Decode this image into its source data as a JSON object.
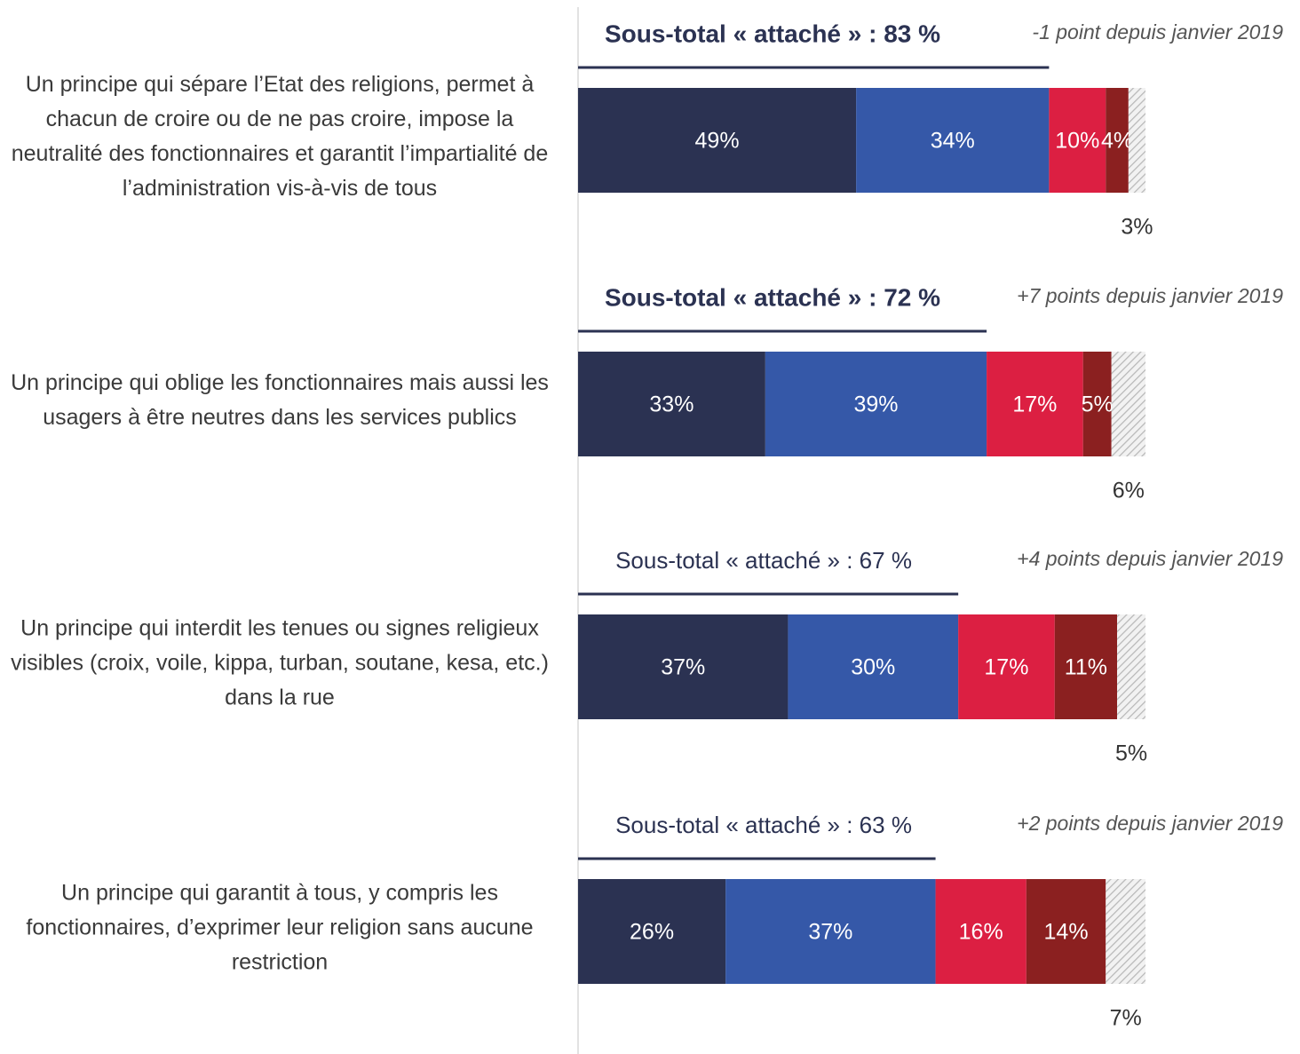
{
  "chart_data": {
    "type": "stacked-bar-horizontal",
    "categories": [
      "Un principe qui sépare l’Etat des religions, permet à chacun de croire ou de ne pas croire, impose la neutralité des fonctionnaires et garantit l’impartialité de l’administration vis-à-vis de tous",
      "Un principe qui oblige les fonctionnaires mais aussi les usagers à être neutres dans les services publics",
      "Un principe qui interdit les tenues ou signes religieux visibles (croix, voile, kippa, turban, soutane, kesa, etc.) dans la rue",
      "Un principe qui garantit à tous, y compris les fonctionnaires, d’exprimer leur religion sans aucune restriction"
    ],
    "subtotals": [
      "Sous-total « attaché » : 83 %",
      "Sous-total « attaché » : 72 %",
      "Sous-total « attaché » : 67 %",
      "Sous-total « attaché » : 63 %"
    ],
    "changes": [
      "-1 point depuis janvier 2019",
      "+7 points depuis janvier 2019",
      "+4 points depuis janvier 2019",
      "+2 points depuis janvier 2019"
    ],
    "xlim": [
      0,
      100
    ],
    "series": [
      {
        "color": "#2b3252",
        "values": [
          49,
          33,
          37,
          26
        ],
        "value_labels": [
          "49%",
          "33%",
          "37%",
          "26%"
        ]
      },
      {
        "color": "#3558a8",
        "values": [
          34,
          39,
          30,
          37
        ],
        "value_labels": [
          "34%",
          "39%",
          "30%",
          "37%"
        ]
      },
      {
        "color": "#dc1f42",
        "values": [
          10,
          17,
          17,
          16
        ],
        "value_labels": [
          "10%",
          "17%",
          "17%",
          "16%"
        ]
      },
      {
        "color": "#8b2020",
        "values": [
          4,
          5,
          11,
          14
        ],
        "value_labels": [
          "4%",
          "5%",
          "11%",
          "14%"
        ]
      },
      {
        "color": "hatch",
        "values": [
          3,
          6,
          5,
          7
        ],
        "value_labels": [
          "3%",
          "6%",
          "5%",
          "7%"
        ]
      }
    ]
  }
}
